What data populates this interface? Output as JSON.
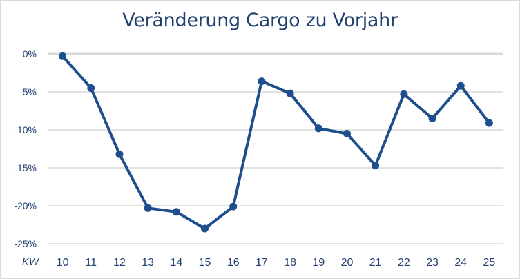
{
  "chart_data": {
    "type": "line",
    "title": "Veränderung Cargo zu Vorjahr",
    "xlabel": "KW",
    "ylabel": "",
    "categories": [
      "10",
      "11",
      "12",
      "13",
      "14",
      "15",
      "16",
      "17",
      "18",
      "19",
      "20",
      "21",
      "22",
      "23",
      "24",
      "25"
    ],
    "series": [
      {
        "name": "Veränderung Cargo zu Vorjahr",
        "values": [
          -0.3,
          -4.5,
          -13.2,
          -20.3,
          -20.8,
          -23.0,
          -20.1,
          -3.6,
          -5.2,
          -9.8,
          -10.5,
          -14.7,
          -5.3,
          -8.5,
          -4.2,
          -9.1
        ],
        "color": "#1f4e8c"
      }
    ],
    "yticks": [
      "0%",
      "-5%",
      "-10%",
      "-15%",
      "-20%",
      "-25%"
    ],
    "ylim": [
      -25,
      0
    ],
    "grid": true,
    "legend": "none"
  },
  "colors": {
    "line": "#1f4e8c",
    "text": "#1f3f6e",
    "grid": "#d9d9d9"
  }
}
